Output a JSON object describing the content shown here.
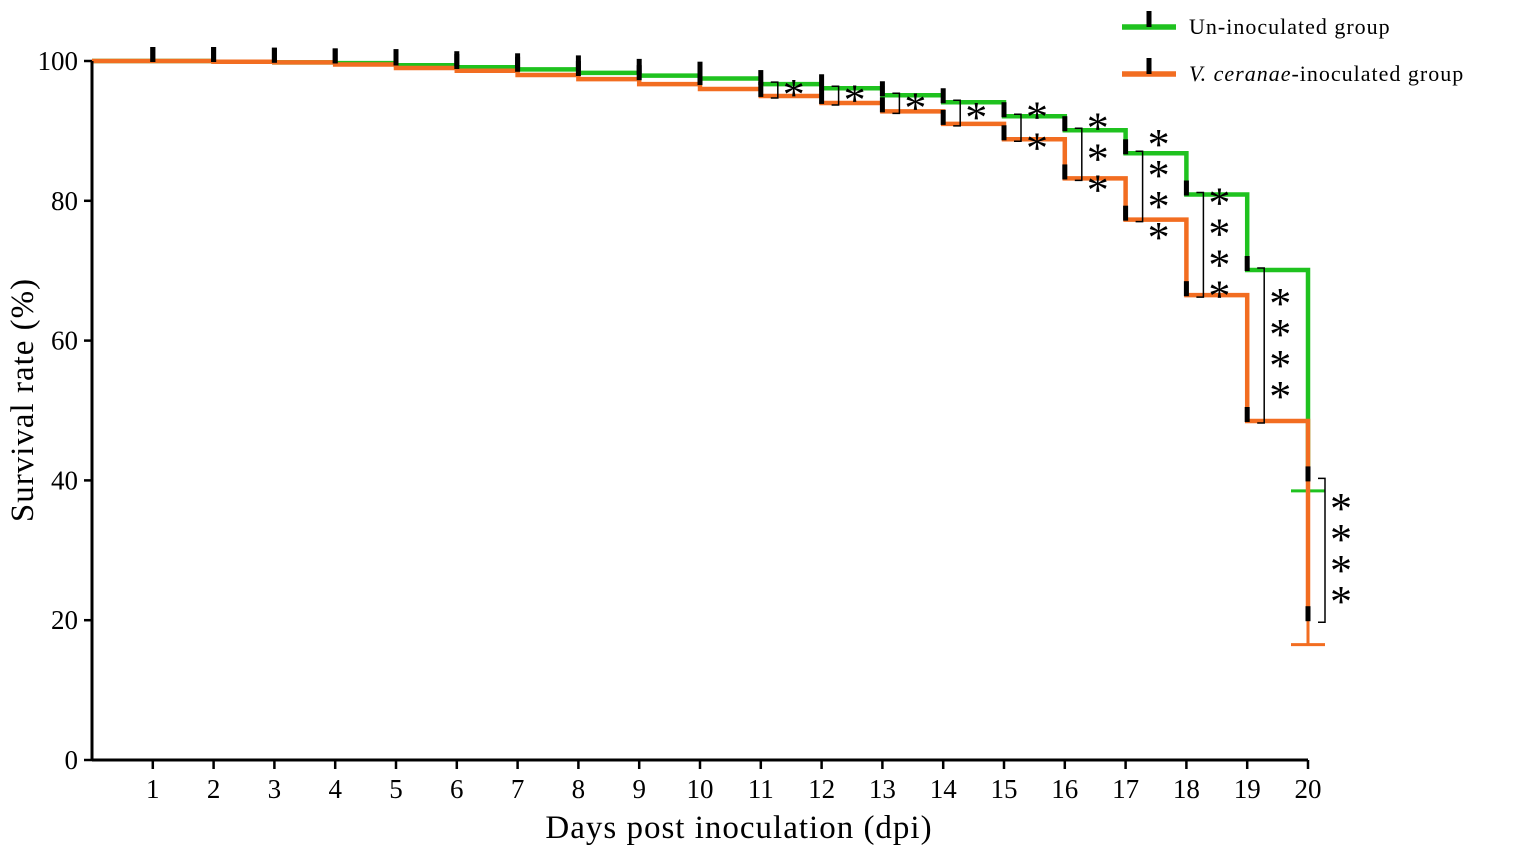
{
  "chart_data": {
    "type": "line",
    "title": "",
    "xlabel": "Days post inoculation (dpi)",
    "ylabel": "Survival rate (%)",
    "xlim": [
      0,
      20
    ],
    "ylim": [
      0,
      100
    ],
    "x_ticks": [
      1,
      2,
      3,
      4,
      5,
      6,
      7,
      8,
      9,
      10,
      11,
      12,
      13,
      14,
      15,
      16,
      17,
      18,
      19,
      20
    ],
    "y_ticks": [
      0,
      20,
      40,
      60,
      80,
      100
    ],
    "grid": false,
    "legend_position": "top-right",
    "series": [
      {
        "name": "Un-inoculated group",
        "name_italic": "",
        "name_rest": "Un-inoculated group",
        "color": "#1fc21f",
        "x": [
          0,
          1,
          2,
          3,
          4,
          5,
          6,
          7,
          8,
          9,
          10,
          11,
          12,
          13,
          14,
          15,
          16,
          17,
          18,
          19,
          20
        ],
        "y": [
          100,
          100,
          99.9,
          99.8,
          99.7,
          99.4,
          99.1,
          98.8,
          98.3,
          97.9,
          97.5,
          96.7,
          96.1,
          95.1,
          94.1,
          92.1,
          90.1,
          86.8,
          80.9,
          70.1,
          40
        ],
        "final_error": 1.5
      },
      {
        "name": "V. ceranae-inoculated group",
        "name_italic": "V. ceranae",
        "name_rest": "-inoculated group",
        "color": "#f26d21",
        "x": [
          0,
          1,
          2,
          3,
          4,
          5,
          6,
          7,
          8,
          9,
          10,
          11,
          12,
          13,
          14,
          15,
          16,
          17,
          18,
          19,
          20
        ],
        "y": [
          100,
          100,
          99.9,
          99.8,
          99.5,
          99.0,
          98.6,
          98.0,
          97.4,
          96.7,
          96.0,
          95.0,
          94.0,
          92.8,
          91.0,
          88.8,
          83.2,
          77.3,
          66.5,
          48.5,
          20
        ],
        "final_error": 3.5
      }
    ],
    "significance": [
      {
        "day": 11,
        "stars": "*"
      },
      {
        "day": 12,
        "stars": "*"
      },
      {
        "day": 13,
        "stars": "*"
      },
      {
        "day": 14,
        "stars": "*"
      },
      {
        "day": 15,
        "stars": "**"
      },
      {
        "day": 16,
        "stars": "***"
      },
      {
        "day": 17,
        "stars": "****"
      },
      {
        "day": 18,
        "stars": "****"
      },
      {
        "day": 19,
        "stars": "****"
      },
      {
        "day": 20,
        "stars": "****"
      }
    ]
  }
}
